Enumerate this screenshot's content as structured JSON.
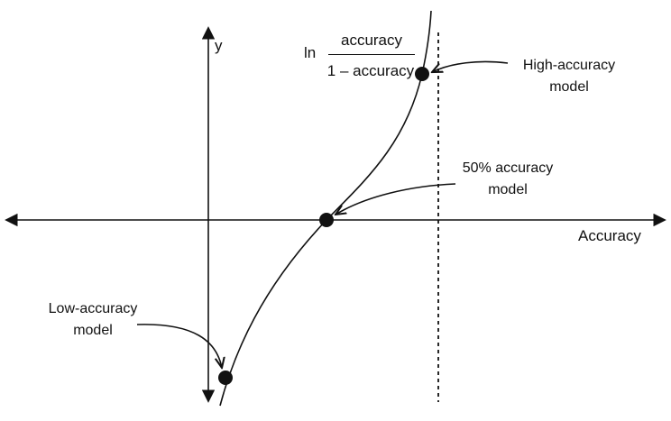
{
  "axes": {
    "x_label": "Accuracy",
    "y_label": "y"
  },
  "formula": {
    "prefix": "ln",
    "numerator": "accuracy",
    "denominator": "1 – accuracy"
  },
  "annotations": {
    "high": {
      "line1": "High-accuracy",
      "line2": "model"
    },
    "mid": {
      "line1": "50% accuracy",
      "line2": "model"
    },
    "low": {
      "line1": "Low-accuracy",
      "line2": "model"
    }
  },
  "colors": {
    "ink": "#111111",
    "background": "#ffffff"
  }
}
